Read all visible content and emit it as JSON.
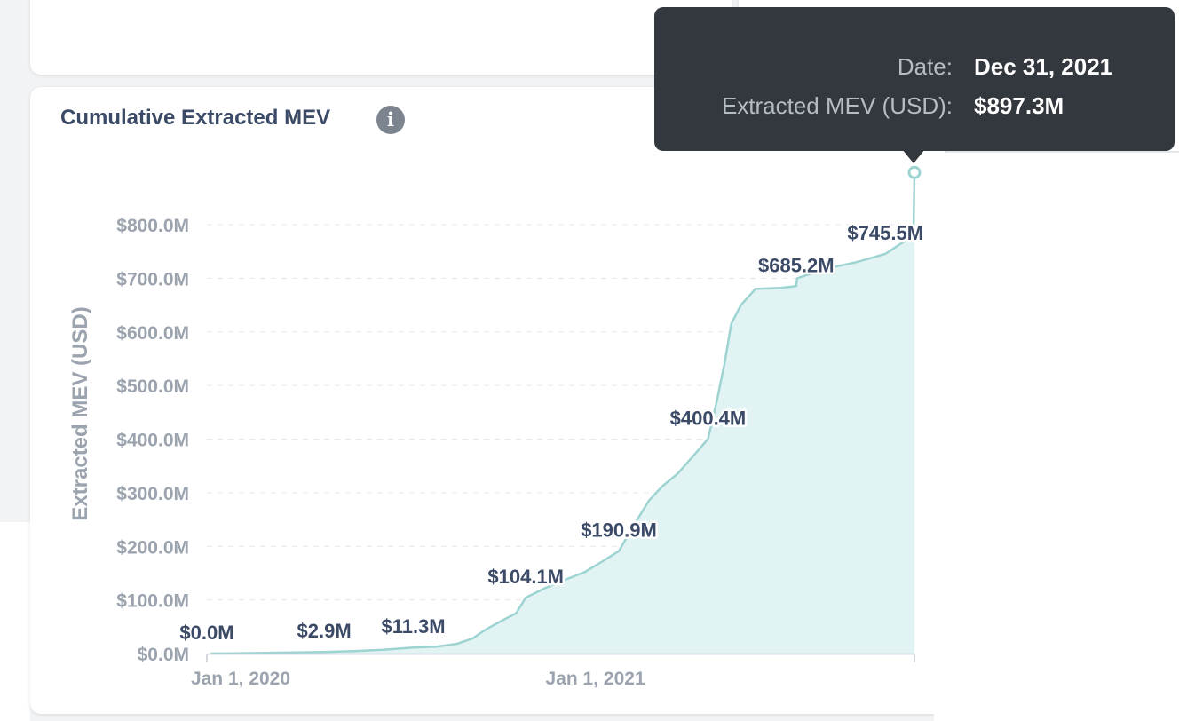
{
  "tooltip": {
    "date_label": "Date:",
    "date_value": "Dec 31, 2021",
    "metric_label": "Extracted MEV (USD):",
    "metric_value": "$897.3M"
  },
  "colors": {
    "line": "#9dd4d2",
    "fill": "#e2f3f3",
    "title": "#3b4a66",
    "axis_text": "#9ba3ae",
    "data_label": "#3b4a66",
    "tooltip_bg": "#33373e"
  },
  "icons": {
    "info": "info-icon"
  },
  "chart_data": {
    "type": "area",
    "title": "Cumulative Extracted MEV",
    "xlabel": "",
    "ylabel": "Extracted MEV (USD)",
    "ylim": [
      0,
      800
    ],
    "grid": true,
    "y_ticks": [
      0,
      100,
      200,
      300,
      400,
      500,
      600,
      700,
      800
    ],
    "y_tick_labels": [
      "$0.0M",
      "$100.0M",
      "$200.0M",
      "$300.0M",
      "$400.0M",
      "$500.0M",
      "$600.0M",
      "$700.0M",
      "$800.0M"
    ],
    "x_ticks": [
      {
        "value": "2020-01-01",
        "label": "Jan 1, 2020"
      },
      {
        "value": "2021-01-01",
        "label": "Jan 1, 2021"
      }
    ],
    "xlim": [
      "2020-01-01",
      "2021-12-31"
    ],
    "series": [
      {
        "points": [
          [
            "2020-01-05",
            0
          ],
          [
            "2020-02-01",
            0.5
          ],
          [
            "2020-03-01",
            1.2
          ],
          [
            "2020-04-01",
            2.0
          ],
          [
            "2020-05-01",
            2.9
          ],
          [
            "2020-06-01",
            4.5
          ],
          [
            "2020-07-01",
            7.0
          ],
          [
            "2020-08-01",
            11.3
          ],
          [
            "2020-08-25",
            13
          ],
          [
            "2020-09-15",
            18
          ],
          [
            "2020-10-01",
            28
          ],
          [
            "2020-10-15",
            45
          ],
          [
            "2020-11-01",
            62
          ],
          [
            "2020-11-15",
            75
          ],
          [
            "2020-11-25",
            104.1
          ],
          [
            "2020-12-15",
            122
          ],
          [
            "2021-01-01",
            135
          ],
          [
            "2021-01-25",
            152
          ],
          [
            "2021-02-15",
            175
          ],
          [
            "2021-03-01",
            190.9
          ],
          [
            "2021-03-15",
            235
          ],
          [
            "2021-04-01",
            285
          ],
          [
            "2021-04-15",
            312
          ],
          [
            "2021-05-01",
            336
          ],
          [
            "2021-05-20",
            375
          ],
          [
            "2021-06-01",
            400.4
          ],
          [
            "2021-06-10",
            470
          ],
          [
            "2021-06-18",
            540
          ],
          [
            "2021-06-25",
            615
          ],
          [
            "2021-07-05",
            650
          ],
          [
            "2021-07-20",
            680
          ],
          [
            "2021-08-15",
            682
          ],
          [
            "2021-08-31",
            685.2
          ],
          [
            "2021-09-01",
            700
          ],
          [
            "2021-10-01",
            718
          ],
          [
            "2021-11-01",
            730
          ],
          [
            "2021-12-01",
            745.5
          ],
          [
            "2021-12-30",
            780
          ],
          [
            "2021-12-31",
            897.3
          ]
        ]
      }
    ],
    "data_labels": [
      {
        "date": "2020-01-01",
        "value": 0.0,
        "text": "$0.0M"
      },
      {
        "date": "2020-05-01",
        "value": 2.9,
        "text": "$2.9M"
      },
      {
        "date": "2020-08-01",
        "value": 11.3,
        "text": "$11.3M"
      },
      {
        "date": "2020-11-25",
        "value": 104.1,
        "text": "$104.1M"
      },
      {
        "date": "2021-03-01",
        "value": 190.9,
        "text": "$190.9M"
      },
      {
        "date": "2021-06-01",
        "value": 400.4,
        "text": "$400.4M"
      },
      {
        "date": "2021-08-31",
        "value": 685.2,
        "text": "$685.2M"
      },
      {
        "date": "2021-12-01",
        "value": 745.5,
        "text": "$745.5M"
      }
    ],
    "highlight": {
      "date": "2021-12-31",
      "value": 897.3
    }
  }
}
